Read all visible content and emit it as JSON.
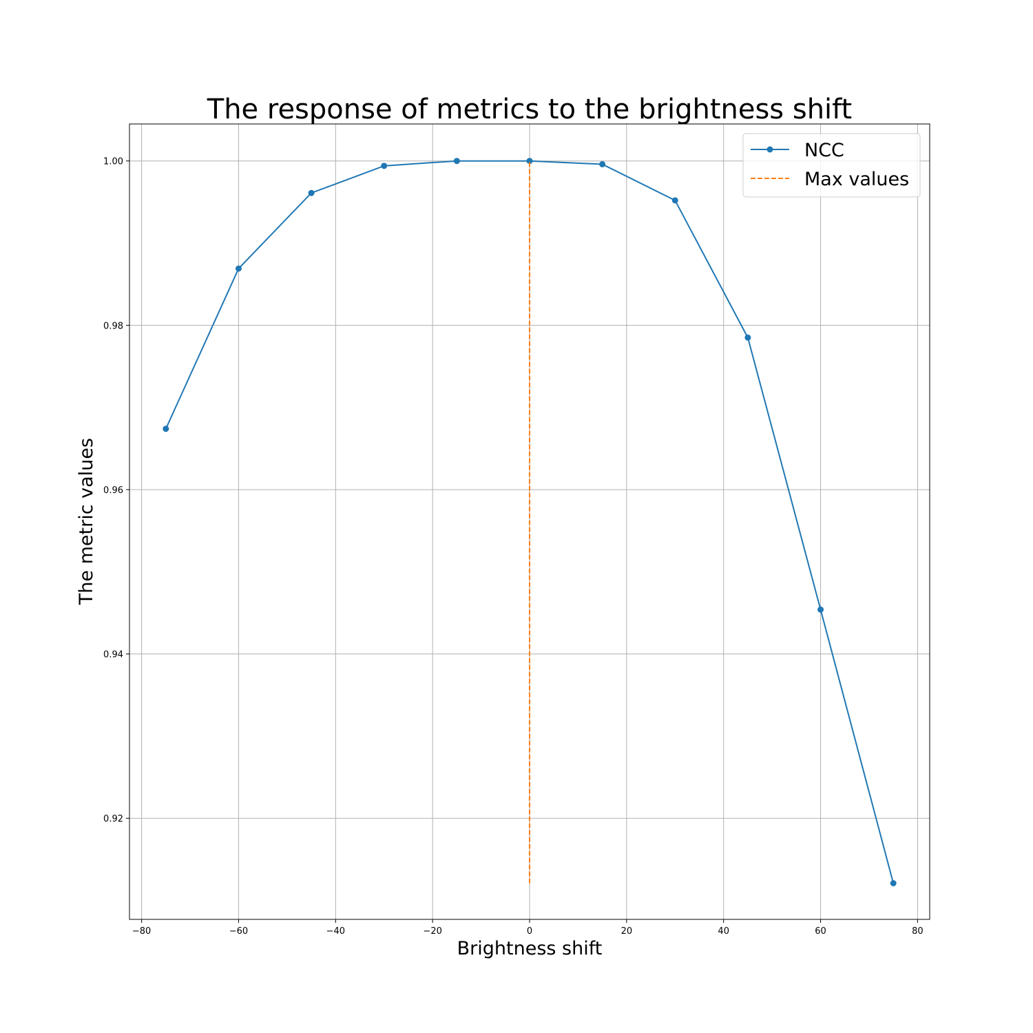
{
  "chart_data": {
    "type": "line",
    "title": "The response of metrics to the brightness shift",
    "xlabel": "Brightness shift",
    "ylabel": "The metric values",
    "xlim": [
      -82.5,
      82.5
    ],
    "ylim": [
      0.9077,
      1.0045
    ],
    "xticks": [
      -80,
      -60,
      -40,
      -20,
      0,
      20,
      40,
      60,
      80
    ],
    "xtick_labels": [
      "−80",
      "−60",
      "−40",
      "−20",
      "0",
      "20",
      "40",
      "60",
      "80"
    ],
    "yticks": [
      0.92,
      0.94,
      0.96,
      0.98,
      1.0
    ],
    "ytick_labels": [
      "0.92",
      "0.94",
      "0.96",
      "0.98",
      "1.00"
    ],
    "grid": true,
    "legend_position": "top-right",
    "series": [
      {
        "name": "NCC",
        "color": "#1f77b4",
        "style": "solid",
        "marker": "circle",
        "x": [
          -75,
          -60,
          -45,
          -30,
          -15,
          0,
          15,
          30,
          45,
          60,
          75
        ],
        "y": [
          0.9674,
          0.9869,
          0.9961,
          0.9994,
          1.0,
          1.0,
          0.9996,
          0.9952,
          0.9785,
          0.9454,
          0.9121
        ]
      },
      {
        "name": "Max values",
        "color": "#ff7f0e",
        "style": "dashed",
        "marker": "none",
        "x": [
          0,
          0
        ],
        "y": [
          0.9121,
          1.0
        ]
      }
    ]
  }
}
